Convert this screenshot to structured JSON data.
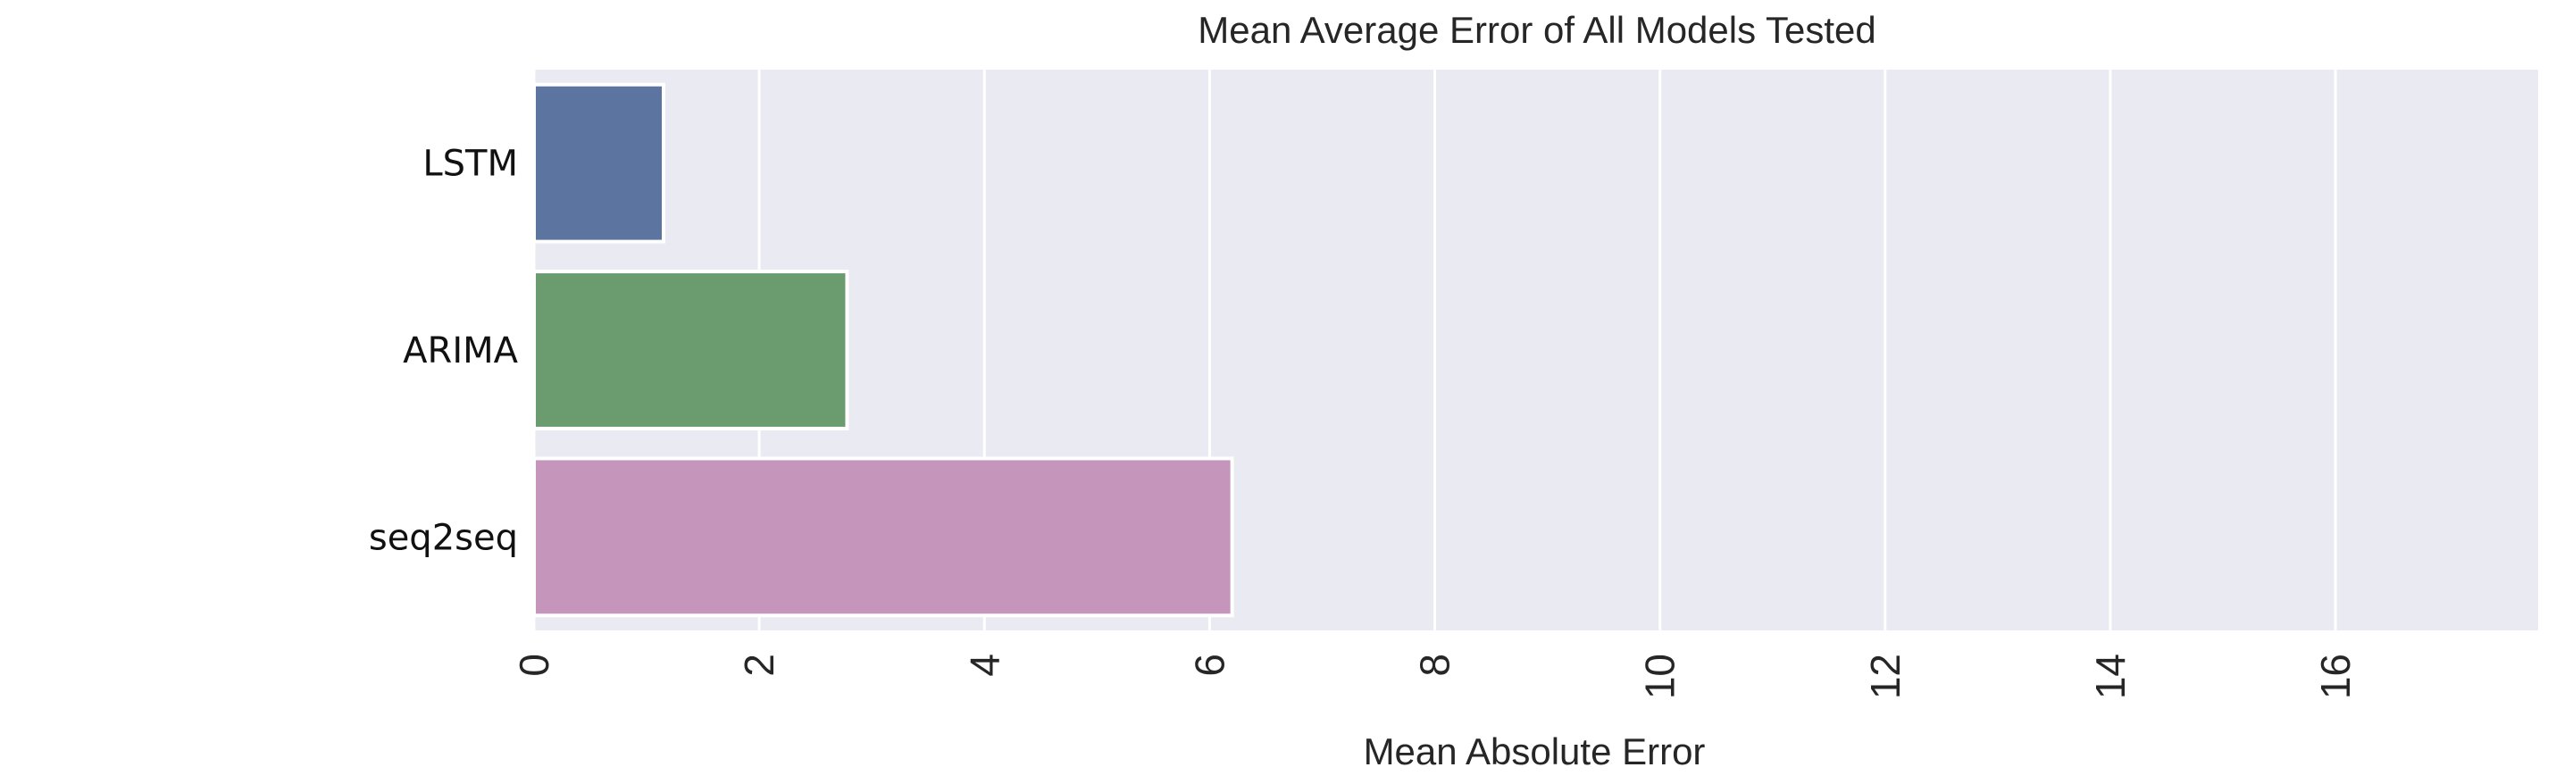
{
  "chart_data": {
    "type": "bar",
    "orientation": "horizontal",
    "title": "Mean Average Error of All Models Tested",
    "xlabel": "Mean Absolute Error",
    "ylabel": "",
    "categories": [
      "LSTM",
      "ARIMA",
      "seq2seq"
    ],
    "values": [
      1.15,
      2.78,
      6.2
    ],
    "colors": [
      "#5b74a0",
      "#6a9c6f",
      "#c595bb"
    ],
    "xlim": [
      0,
      17.8
    ],
    "xticks": [
      0,
      2,
      4,
      6,
      8,
      10,
      12,
      14,
      16
    ],
    "xtick_labels": [
      "0",
      "2",
      "4",
      "6",
      "8",
      "10",
      "12",
      "14",
      "16"
    ],
    "xtick_rotation": -90,
    "grid": true,
    "grid_axis": "x",
    "plot_background": "#eaeaf2",
    "grid_color": "#ffffff"
  }
}
